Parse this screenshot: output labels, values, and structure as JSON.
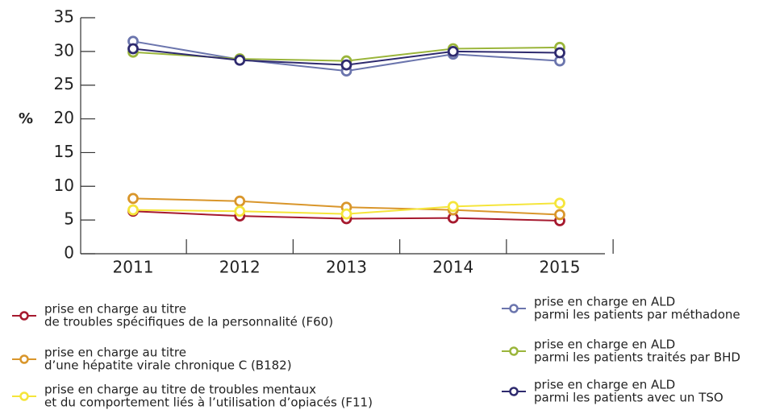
{
  "chart_data": {
    "type": "line",
    "y_label": "%",
    "categories": [
      "2011",
      "2012",
      "2013",
      "2014",
      "2015"
    ],
    "ylim": [
      0,
      35
    ],
    "yticks": [
      0,
      5,
      10,
      15,
      20,
      25,
      30,
      35
    ],
    "series": [
      {
        "name": [
          "prise en charge au titre",
          "de troubles spécifiques de la personnalité (F60)"
        ],
        "color": "#a6192e",
        "values": [
          6.3,
          5.6,
          5.2,
          5.3,
          4.9
        ]
      },
      {
        "name": [
          "prise en charge au titre",
          "d’une hépatite virale chronique C (B182)"
        ],
        "color": "#d9962b",
        "values": [
          8.2,
          7.8,
          6.9,
          6.5,
          5.8
        ]
      },
      {
        "name": [
          "prise en charge au titre de troubles mentaux",
          "et du comportement liés à l’utilisation d’opiacés (F11)"
        ],
        "color": "#f5e53a",
        "values": [
          6.5,
          6.3,
          5.9,
          7.0,
          7.5
        ]
      },
      {
        "name": [
          "prise en charge en ALD",
          "parmi les patients par méthadone"
        ],
        "color": "#6b75ad",
        "values": [
          31.5,
          28.8,
          27.1,
          29.6,
          28.6
        ]
      },
      {
        "name": [
          "prise en charge en ALD",
          "parmi les patients traités par BHD"
        ],
        "color": "#9ab53a",
        "values": [
          29.9,
          28.9,
          28.6,
          30.4,
          30.6
        ]
      },
      {
        "name": [
          "prise en charge en ALD",
          "parmi les patients avec un TSO"
        ],
        "color": "#2e2a6e",
        "values": [
          30.4,
          28.7,
          28.0,
          30.0,
          29.8
        ]
      }
    ]
  }
}
